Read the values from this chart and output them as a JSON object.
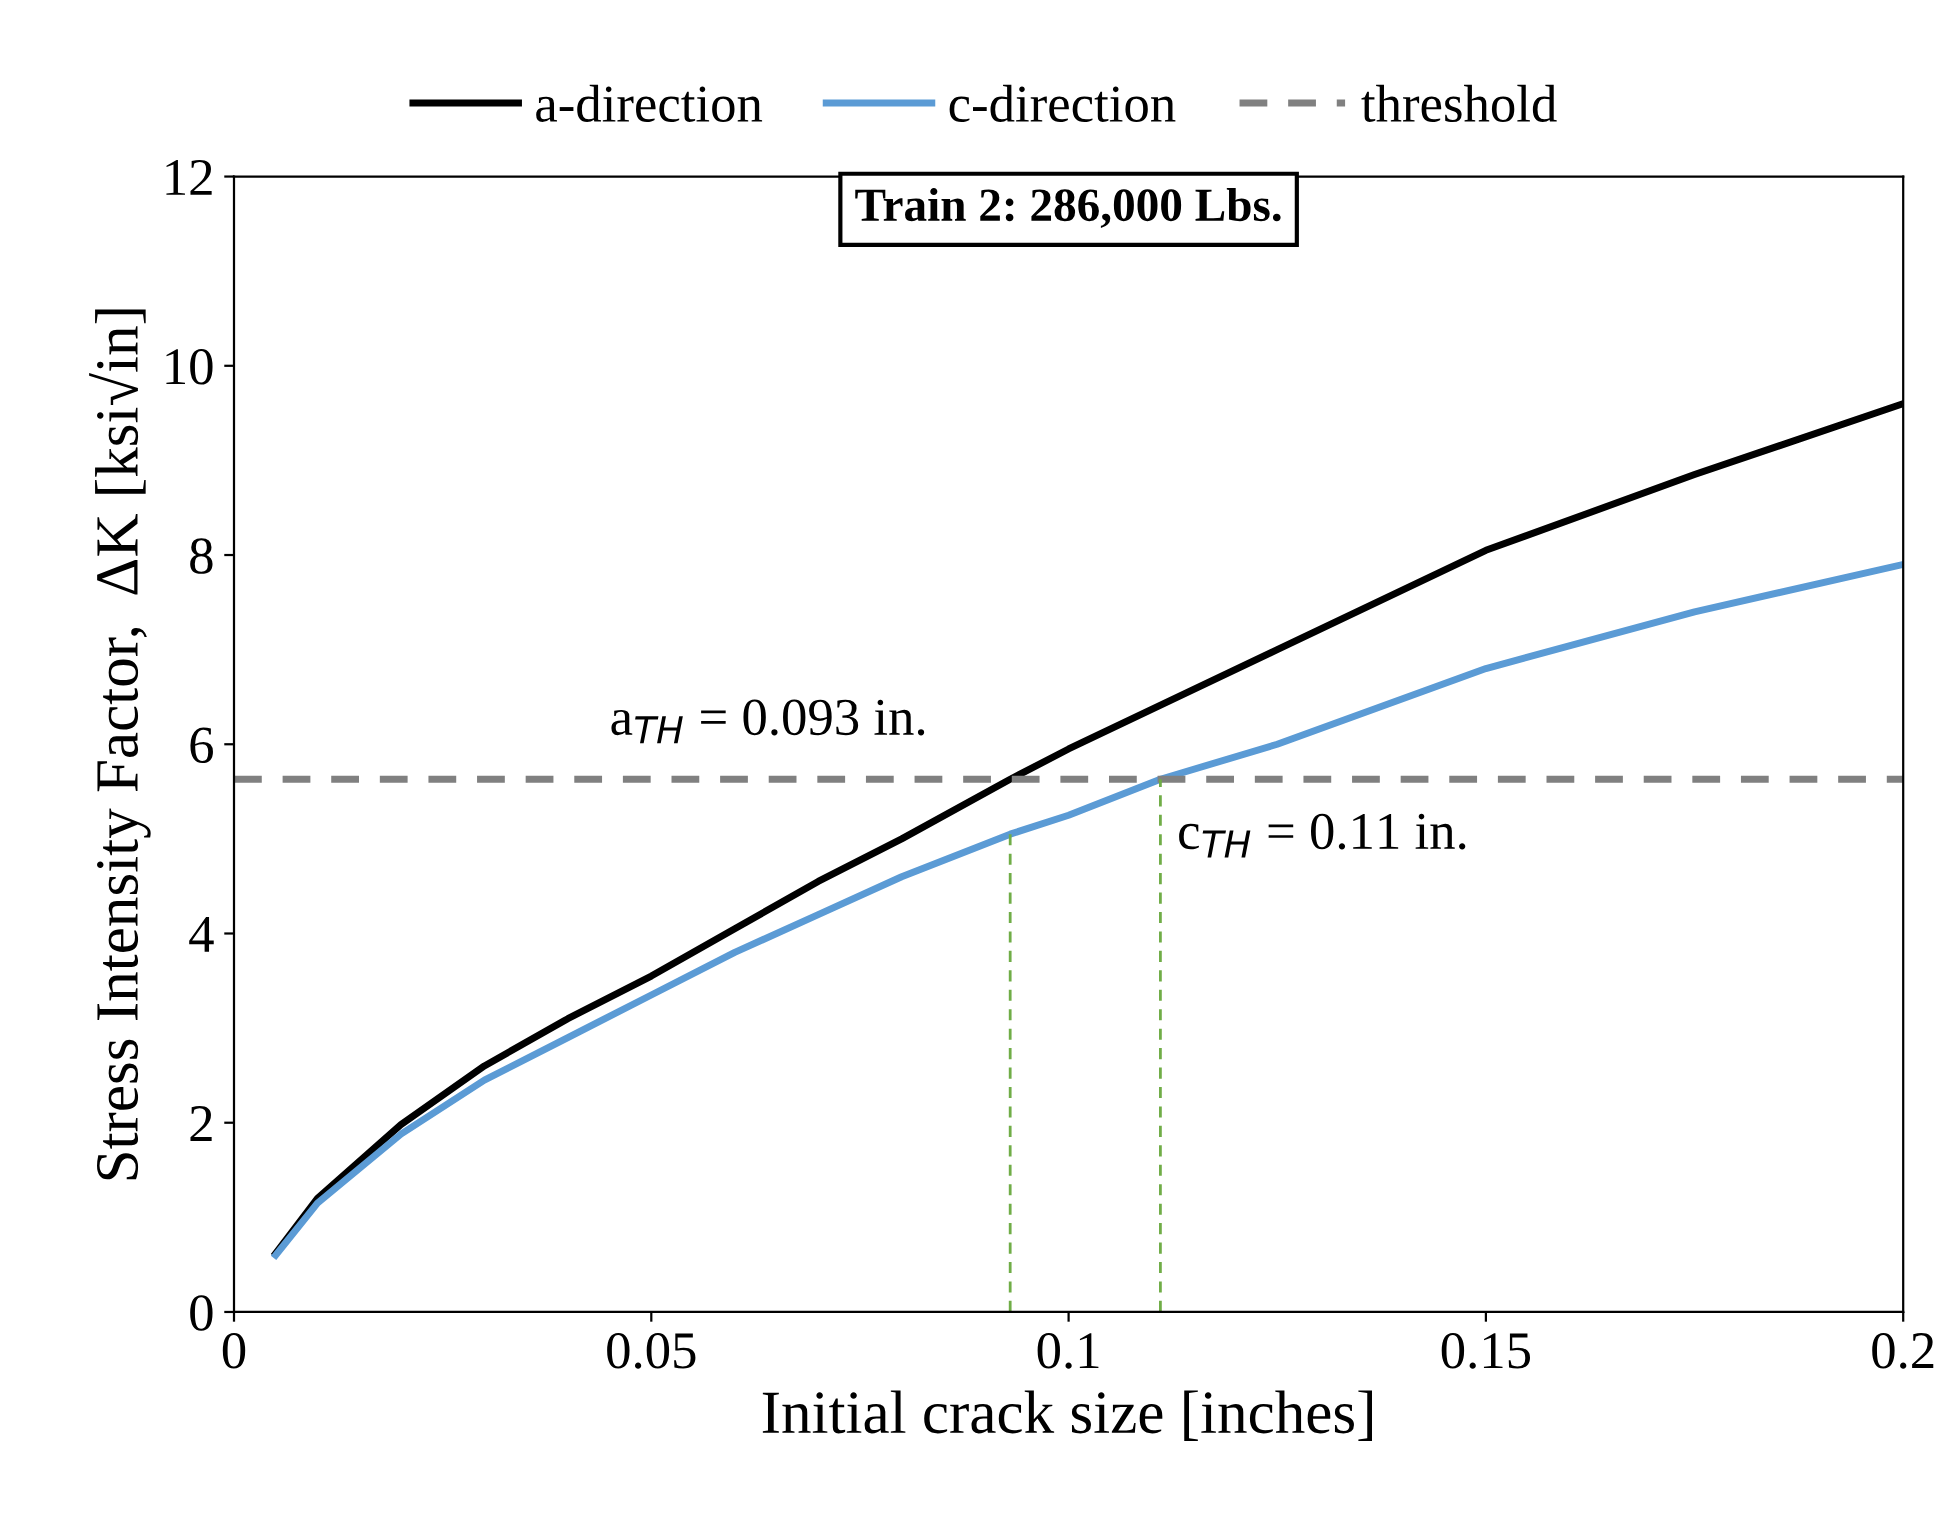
{
  "chart_data": {
    "type": "line",
    "title": "Train 2: 286,000 Lbs.",
    "xlabel": "Initial crack size [inches]",
    "ylabel": "Stress Intensity Factor,  ΔK [ksi√in]",
    "xlim": [
      0,
      0.2
    ],
    "xticks": [
      0,
      0.05,
      0.1,
      0.15,
      0.2
    ],
    "ylim": [
      0,
      12
    ],
    "yticks": [
      0,
      2,
      4,
      6,
      8,
      10,
      12
    ],
    "grid": false,
    "legend": "top",
    "marker": "none",
    "series": [
      {
        "name": "a-direction",
        "color": "#000000",
        "line_style": "solid",
        "x": [
          0.005,
          0.01,
          0.02,
          0.03,
          0.04,
          0.05,
          0.06,
          0.07,
          0.08,
          0.093,
          0.1,
          0.125,
          0.15,
          0.175,
          0.2
        ],
        "values": [
          0.62,
          1.2,
          1.98,
          2.6,
          3.1,
          3.55,
          4.05,
          4.55,
          5.0,
          5.63,
          5.95,
          7.0,
          8.05,
          8.85,
          9.6
        ]
      },
      {
        "name": "c-direction",
        "color": "#5b9bd5",
        "line_style": "solid",
        "x": [
          0.005,
          0.01,
          0.02,
          0.03,
          0.04,
          0.05,
          0.06,
          0.07,
          0.08,
          0.093,
          0.1,
          0.111,
          0.125,
          0.15,
          0.175,
          0.2
        ],
        "values": [
          0.6,
          1.15,
          1.88,
          2.45,
          2.9,
          3.35,
          3.8,
          4.2,
          4.6,
          5.05,
          5.25,
          5.63,
          6.0,
          6.8,
          7.4,
          7.9
        ]
      },
      {
        "name": "threshold",
        "color": "#808080",
        "line_style": "dashed",
        "x": [
          0,
          0.2
        ],
        "values": [
          5.63,
          5.63
        ]
      },
      {
        "color": "#70ad47",
        "line_style": "dashed",
        "x": [
          0.093,
          0.093
        ],
        "values": [
          0,
          5.05
        ]
      },
      {
        "color": "#70ad47",
        "line_style": "dashed",
        "x": [
          0.111,
          0.111
        ],
        "values": [
          0,
          5.63
        ]
      }
    ],
    "annotations": [
      {
        "text": "a$_{TH}$ = 0.093 in.",
        "x": 0.093,
        "y": 5.63
      },
      {
        "text": "c$_{TH}$ = 0.11 in.",
        "x": 0.111,
        "y": 5.63
      }
    ]
  }
}
